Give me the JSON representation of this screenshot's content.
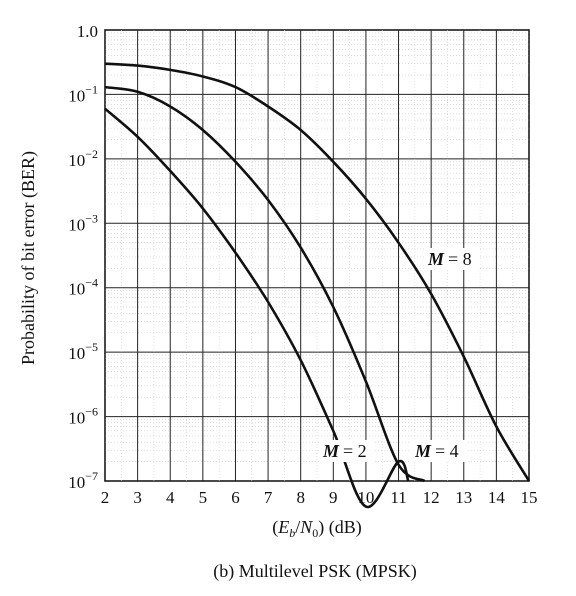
{
  "chart_data": {
    "type": "line",
    "caption": "(b) Multilevel PSK (MPSK)",
    "xlabel": "(Eb/N0) (dB)",
    "ylabel": "Probability of bit error (BER)",
    "xlim": [
      2,
      15
    ],
    "ylim": [
      1e-07,
      1.0
    ],
    "yscale": "log",
    "grid": true,
    "x_ticks": [
      "2",
      "3",
      "4",
      "5",
      "6",
      "7",
      "8",
      "9",
      "10",
      "11",
      "12",
      "13",
      "14",
      "15"
    ],
    "y_ticks": [
      {
        "base": "1.0",
        "exp": ""
      },
      {
        "base": "10",
        "exp": "−1"
      },
      {
        "base": "10",
        "exp": "−2"
      },
      {
        "base": "10",
        "exp": "−3"
      },
      {
        "base": "10",
        "exp": "−4"
      },
      {
        "base": "10",
        "exp": "−5"
      },
      {
        "base": "10",
        "exp": "−6"
      },
      {
        "base": "10",
        "exp": "−7"
      }
    ],
    "series": [
      {
        "name": "M = 2",
        "label_text": "= 2",
        "x": [
          2,
          3,
          4,
          5,
          6,
          7,
          8,
          9,
          10,
          11,
          11.3
        ],
        "y": [
          0.06,
          0.022,
          0.0065,
          0.0017,
          0.00035,
          6e-05,
          7.5e-06,
          6e-07,
          4e-08,
          2e-07,
          1e-07
        ]
      },
      {
        "name": "M = 4",
        "label_text": "= 4",
        "x": [
          2,
          3,
          4,
          5,
          6,
          7,
          8,
          9,
          10,
          11,
          11.8
        ],
        "y": [
          0.13,
          0.11,
          0.065,
          0.028,
          0.009,
          0.0023,
          0.00042,
          5e-05,
          3.5e-06,
          1.8e-07,
          1e-07
        ]
      },
      {
        "name": "M = 8",
        "label_text": "= 8",
        "x": [
          2,
          3,
          4,
          5,
          6,
          7,
          8,
          9,
          10,
          11,
          12,
          13,
          14,
          15
        ],
        "y": [
          0.3,
          0.28,
          0.24,
          0.19,
          0.13,
          0.065,
          0.028,
          0.009,
          0.0024,
          0.0005,
          8e-05,
          8.5e-06,
          7e-07,
          1e-07
        ]
      }
    ]
  }
}
